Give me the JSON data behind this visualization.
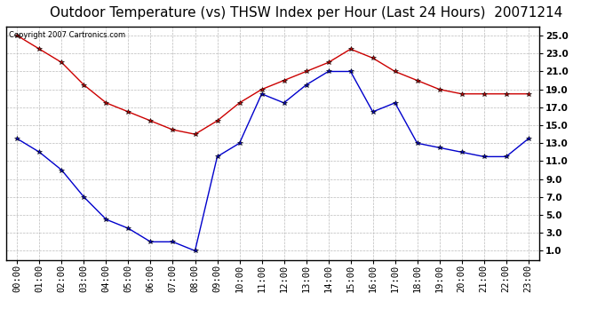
{
  "title": "Outdoor Temperature (vs) THSW Index per Hour (Last 24 Hours)  20071214",
  "copyright_text": "Copyright 2007 Cartronics.com",
  "hours": [
    "00:00",
    "01:00",
    "02:00",
    "03:00",
    "04:00",
    "05:00",
    "06:00",
    "07:00",
    "08:00",
    "09:00",
    "10:00",
    "11:00",
    "12:00",
    "13:00",
    "14:00",
    "15:00",
    "16:00",
    "17:00",
    "18:00",
    "19:00",
    "20:00",
    "21:00",
    "22:00",
    "23:00"
  ],
  "temp_red": [
    25.0,
    23.5,
    22.0,
    19.5,
    17.5,
    16.5,
    15.5,
    14.5,
    14.0,
    15.5,
    17.5,
    19.0,
    20.0,
    21.0,
    22.0,
    23.5,
    22.5,
    21.0,
    20.0,
    19.0,
    18.5,
    18.5,
    18.5,
    18.5
  ],
  "temp_blue": [
    13.5,
    12.0,
    10.0,
    7.0,
    4.5,
    3.5,
    2.0,
    2.0,
    1.0,
    11.5,
    13.0,
    18.5,
    17.5,
    19.5,
    21.0,
    21.0,
    16.5,
    17.5,
    13.0,
    12.5,
    12.0,
    11.5,
    11.5,
    13.5
  ],
  "ylim": [
    0.0,
    26.0
  ],
  "yticks": [
    1.0,
    3.0,
    5.0,
    7.0,
    9.0,
    11.0,
    13.0,
    15.0,
    17.0,
    19.0,
    21.0,
    23.0,
    25.0
  ],
  "red_color": "#cc0000",
  "blue_color": "#0000cc",
  "bg_color": "#ffffff",
  "grid_color": "#bbbbbb",
  "title_fontsize": 11,
  "tick_fontsize": 7.5
}
